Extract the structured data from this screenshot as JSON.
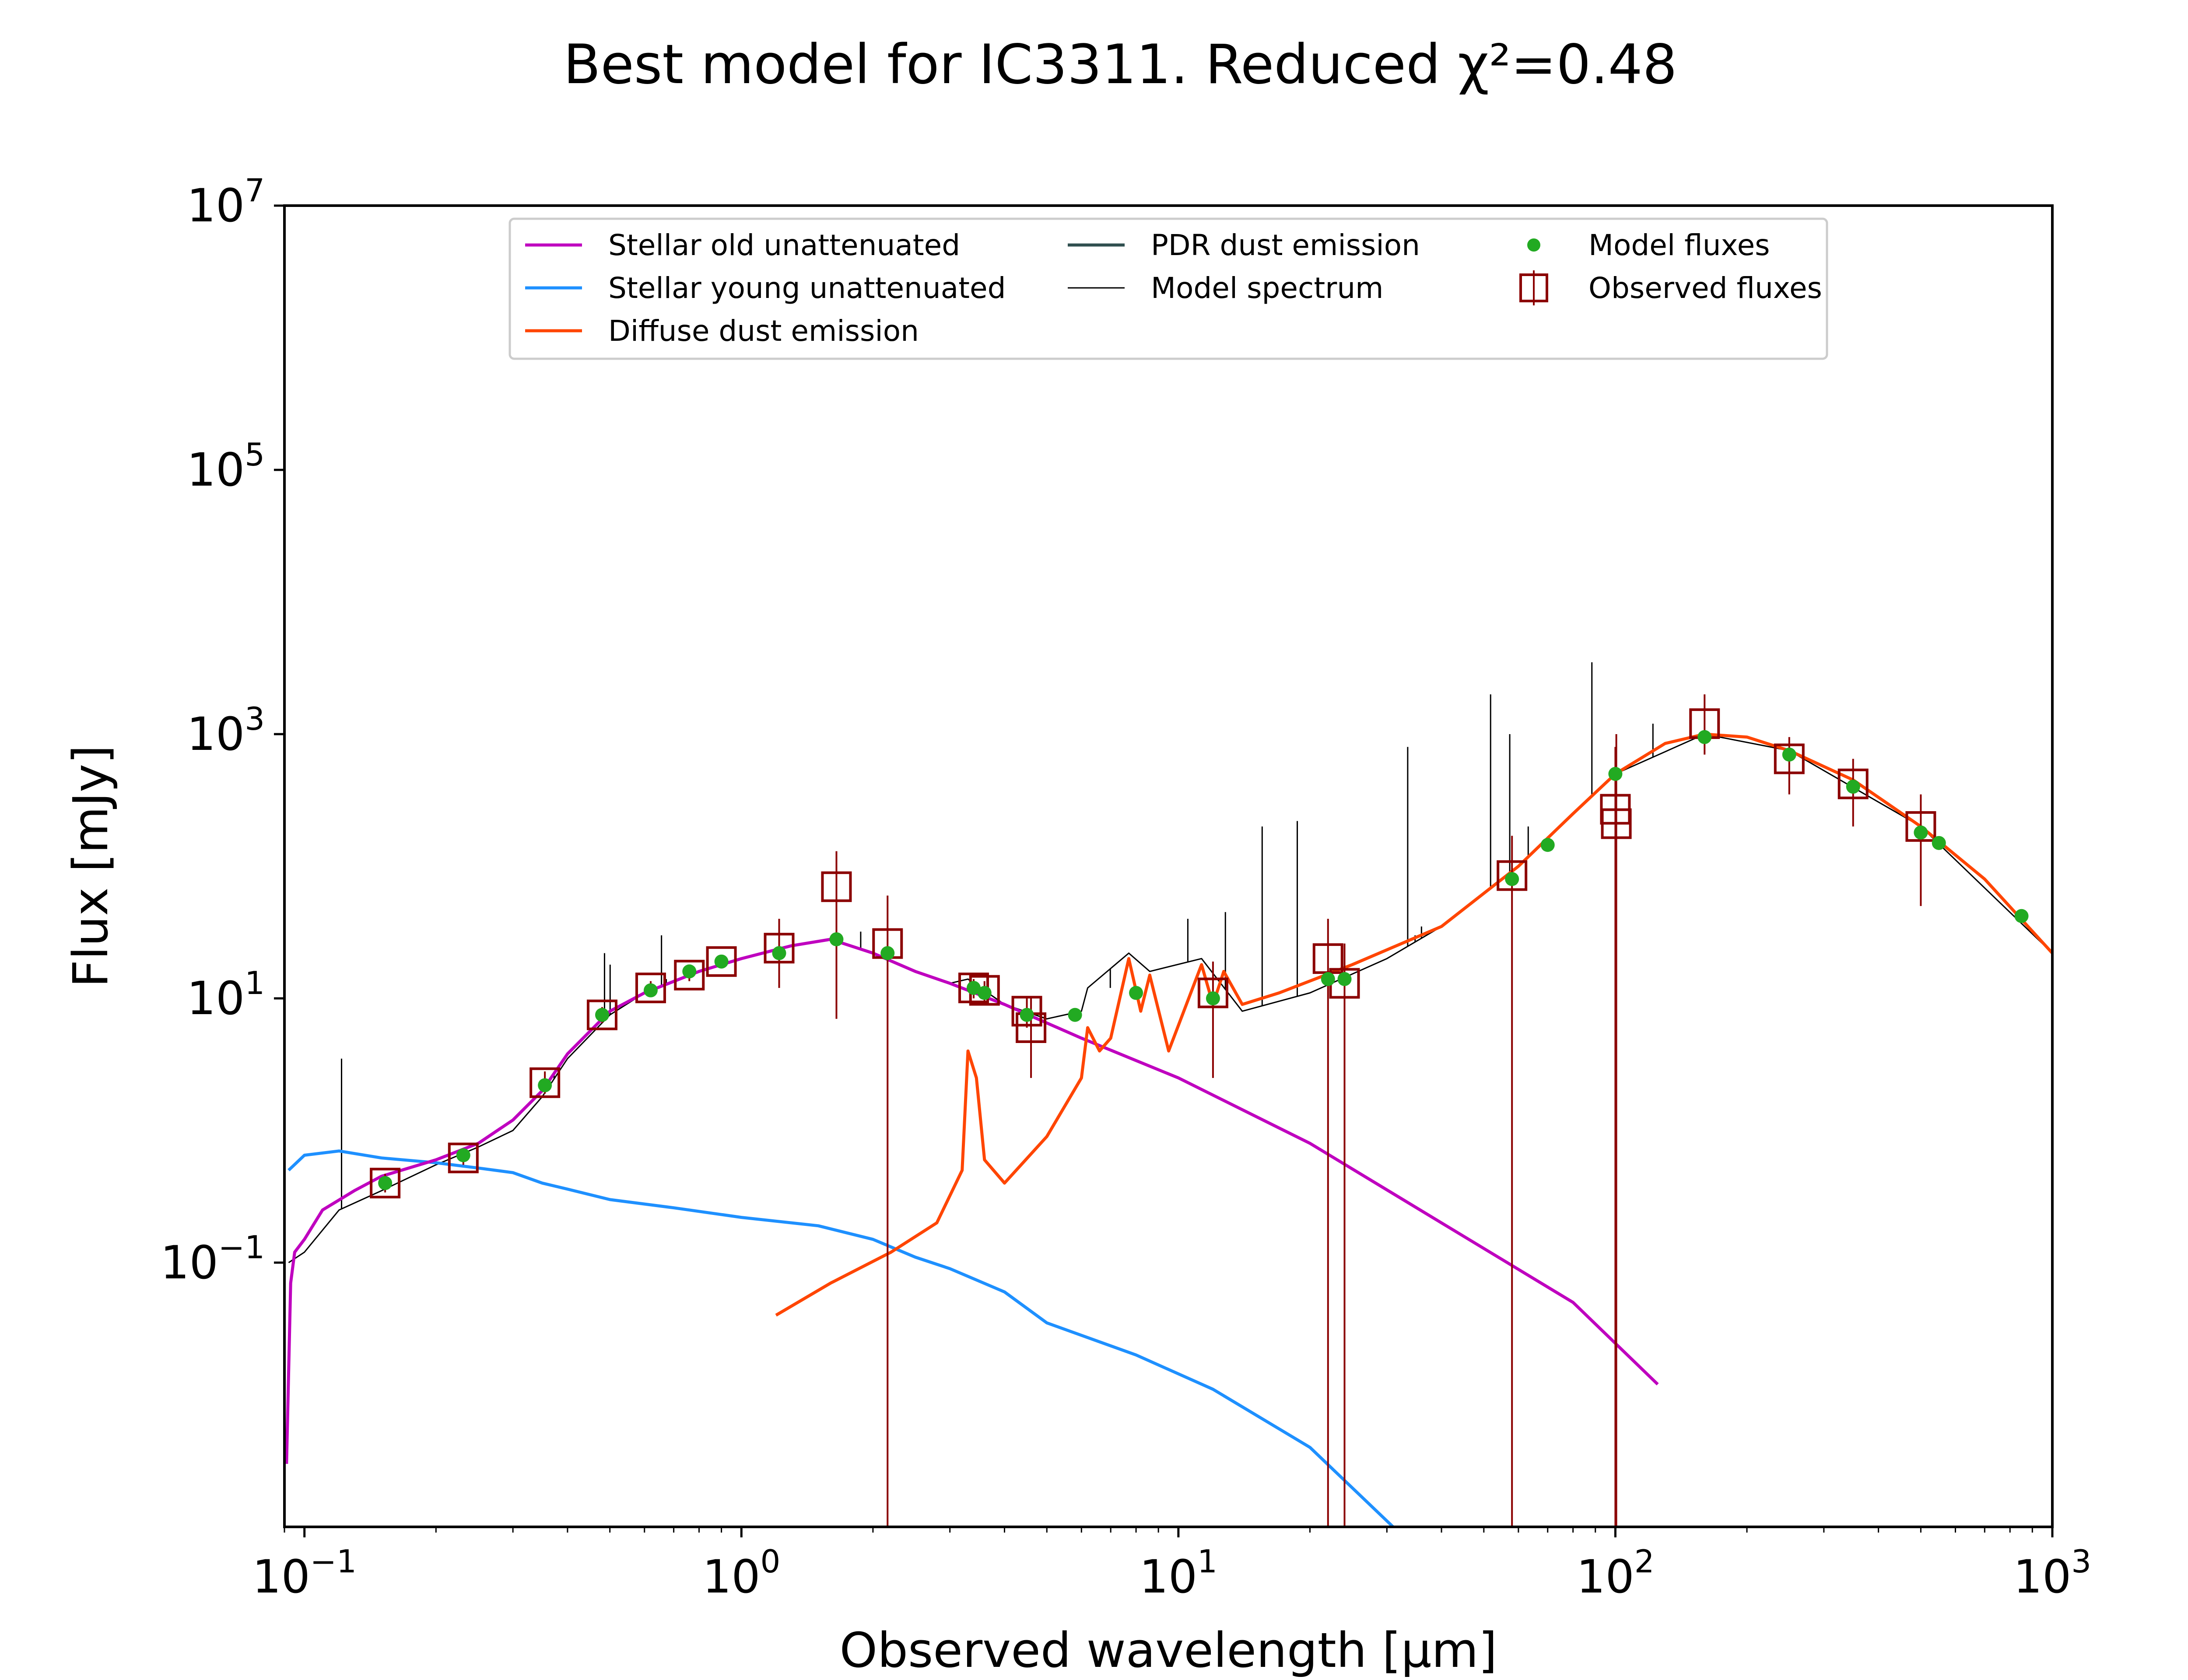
{
  "chart_data": {
    "type": "line",
    "title": "Best model for IC3311. Reduced χ²=0.48",
    "xlabel": "Observed wavelength [μm]",
    "ylabel": "Flux [mJy]",
    "xscale": "log",
    "yscale": "log",
    "xlim": [
      0.09,
      1000
    ],
    "ylim": [
      0.001,
      10000000
    ],
    "grid": false,
    "legend_position": "top-center",
    "x_ticks": [
      {
        "value": 0.1,
        "base": "10",
        "exp": "−1"
      },
      {
        "value": 1,
        "base": "10",
        "exp": "0"
      },
      {
        "value": 10,
        "base": "10",
        "exp": "1"
      },
      {
        "value": 100,
        "base": "10",
        "exp": "2"
      },
      {
        "value": 1000,
        "base": "10",
        "exp": "3"
      }
    ],
    "y_ticks": [
      {
        "value": 0.1,
        "base": "10",
        "exp": "−1"
      },
      {
        "value": 10,
        "base": "10",
        "exp": "1"
      },
      {
        "value": 1000,
        "base": "10",
        "exp": "3"
      },
      {
        "value": 100000,
        "base": "10",
        "exp": "5"
      },
      {
        "value": 10000000,
        "base": "10",
        "exp": "7"
      }
    ],
    "series": [
      {
        "name": "Stellar old unattenuated",
        "kind": "line",
        "color": "#bf00bf",
        "points": [
          [
            0.091,
            0.003
          ],
          [
            0.093,
            0.07
          ],
          [
            0.095,
            0.12
          ],
          [
            0.1,
            0.15
          ],
          [
            0.11,
            0.25
          ],
          [
            0.13,
            0.35
          ],
          [
            0.15,
            0.45
          ],
          [
            0.2,
            0.6
          ],
          [
            0.25,
            0.8
          ],
          [
            0.3,
            1.2
          ],
          [
            0.35,
            2.0
          ],
          [
            0.4,
            3.8
          ],
          [
            0.5,
            8
          ],
          [
            0.6,
            11
          ],
          [
            0.8,
            16
          ],
          [
            1.0,
            20
          ],
          [
            1.3,
            25
          ],
          [
            1.6,
            28
          ],
          [
            2.0,
            22
          ],
          [
            2.5,
            16
          ],
          [
            3.0,
            13
          ],
          [
            4.0,
            9
          ],
          [
            6.0,
            5
          ],
          [
            10.0,
            2.5
          ],
          [
            20.0,
            0.8
          ],
          [
            40.0,
            0.2
          ],
          [
            80.0,
            0.05
          ],
          [
            125.0,
            0.012
          ]
        ]
      },
      {
        "name": "Stellar young unattenuated",
        "kind": "line",
        "color": "#1e90ff",
        "points": [
          [
            0.092,
            0.5
          ],
          [
            0.1,
            0.65
          ],
          [
            0.12,
            0.7
          ],
          [
            0.15,
            0.62
          ],
          [
            0.2,
            0.57
          ],
          [
            0.25,
            0.52
          ],
          [
            0.3,
            0.48
          ],
          [
            0.35,
            0.4
          ],
          [
            0.4,
            0.36
          ],
          [
            0.5,
            0.3
          ],
          [
            0.7,
            0.26
          ],
          [
            1.0,
            0.22
          ],
          [
            1.5,
            0.19
          ],
          [
            2.0,
            0.15
          ],
          [
            2.5,
            0.11
          ],
          [
            3.0,
            0.09
          ],
          [
            4.0,
            0.06
          ],
          [
            5.0,
            0.035
          ],
          [
            8.0,
            0.02
          ],
          [
            12.0,
            0.011
          ],
          [
            20.0,
            0.004
          ],
          [
            31.0,
            0.001
          ]
        ]
      },
      {
        "name": "Diffuse dust emission",
        "kind": "line",
        "color": "#ff4500",
        "points": [
          [
            1.2,
            0.04
          ],
          [
            1.6,
            0.07
          ],
          [
            2.2,
            0.12
          ],
          [
            2.8,
            0.2
          ],
          [
            3.2,
            0.5
          ],
          [
            3.3,
            4
          ],
          [
            3.45,
            2.5
          ],
          [
            3.6,
            0.6
          ],
          [
            4.0,
            0.4
          ],
          [
            5.0,
            0.9
          ],
          [
            6.0,
            2.5
          ],
          [
            6.2,
            6
          ],
          [
            6.6,
            4
          ],
          [
            7.0,
            5
          ],
          [
            7.7,
            20
          ],
          [
            8.2,
            8
          ],
          [
            8.6,
            15
          ],
          [
            9.5,
            4
          ],
          [
            11.3,
            18
          ],
          [
            12.0,
            9
          ],
          [
            12.7,
            16
          ],
          [
            14.0,
            9
          ],
          [
            17.0,
            11
          ],
          [
            25.0,
            18
          ],
          [
            40.0,
            35
          ],
          [
            60.0,
            100
          ],
          [
            80.0,
            250
          ],
          [
            100.0,
            500
          ],
          [
            130.0,
            850
          ],
          [
            160.0,
            1000
          ],
          [
            200.0,
            950
          ],
          [
            250.0,
            750
          ],
          [
            350.0,
            450
          ],
          [
            500.0,
            200
          ],
          [
            700.0,
            80
          ],
          [
            1000.0,
            22
          ]
        ]
      },
      {
        "name": "PDR dust emission",
        "kind": "line",
        "color": "#2f4f4f",
        "points": []
      },
      {
        "name": "Model spectrum",
        "kind": "line",
        "color": "#000000",
        "points": [
          [
            0.092,
            0.1
          ],
          [
            0.1,
            0.12
          ],
          [
            0.12,
            0.25
          ],
          [
            0.15,
            0.35
          ],
          [
            0.2,
            0.55
          ],
          [
            0.25,
            0.75
          ],
          [
            0.3,
            1.0
          ],
          [
            0.35,
            1.8
          ],
          [
            0.4,
            3.5
          ],
          [
            0.5,
            7.5
          ],
          [
            0.6,
            11
          ],
          [
            0.8,
            16
          ],
          [
            1.0,
            20
          ],
          [
            1.3,
            25
          ],
          [
            1.6,
            28
          ],
          [
            2.0,
            22
          ],
          [
            2.5,
            16
          ],
          [
            3.0,
            13
          ],
          [
            3.3,
            14
          ],
          [
            4.0,
            9
          ],
          [
            5.0,
            7
          ],
          [
            6.0,
            8
          ],
          [
            6.2,
            12
          ],
          [
            7.7,
            22
          ],
          [
            8.6,
            16
          ],
          [
            11.3,
            20
          ],
          [
            14.0,
            8
          ],
          [
            20.0,
            11
          ],
          [
            30.0,
            20
          ],
          [
            40.0,
            35
          ],
          [
            60.0,
            100
          ],
          [
            100.0,
            500
          ],
          [
            160.0,
            1000
          ],
          [
            250.0,
            750
          ],
          [
            500.0,
            200
          ],
          [
            1000.0,
            22
          ]
        ]
      },
      {
        "name": "Model fluxes",
        "kind": "scatter",
        "color": "#22aa22",
        "points": [
          [
            0.153,
            0.4
          ],
          [
            0.231,
            0.65
          ],
          [
            0.355,
            2.2
          ],
          [
            0.48,
            7.5
          ],
          [
            0.62,
            11.5
          ],
          [
            0.76,
            16
          ],
          [
            0.9,
            19
          ],
          [
            1.22,
            22
          ],
          [
            1.65,
            28
          ],
          [
            2.16,
            22
          ],
          [
            3.4,
            12
          ],
          [
            3.6,
            11
          ],
          [
            4.5,
            7.5
          ],
          [
            5.8,
            7.5
          ],
          [
            8.0,
            11
          ],
          [
            12.0,
            10
          ],
          [
            22.0,
            14
          ],
          [
            24.0,
            14
          ],
          [
            58.0,
            80
          ],
          [
            70.0,
            145
          ],
          [
            100.0,
            500
          ],
          [
            160.0,
            950
          ],
          [
            250.0,
            700
          ],
          [
            350.0,
            400
          ],
          [
            500.0,
            180
          ],
          [
            550.0,
            150
          ],
          [
            850.0,
            42
          ]
        ]
      },
      {
        "name": "Observed fluxes",
        "kind": "errorbar",
        "color": "#8b0000",
        "points": [
          {
            "x": 0.153,
            "y": 0.4,
            "ylo": 0.34,
            "yhi": 0.47
          },
          {
            "x": 0.231,
            "y": 0.62,
            "ylo": 0.55,
            "yhi": 0.7
          },
          {
            "x": 0.355,
            "y": 2.3,
            "ylo": 1.9,
            "yhi": 2.8
          },
          {
            "x": 0.48,
            "y": 7.5,
            "ylo": 6.5,
            "yhi": 8.6
          },
          {
            "x": 0.62,
            "y": 12,
            "ylo": 10.5,
            "yhi": 13.5
          },
          {
            "x": 0.76,
            "y": 15,
            "ylo": 13.5,
            "yhi": 17
          },
          {
            "x": 0.9,
            "y": 19,
            "ylo": 17,
            "yhi": 21
          },
          {
            "x": 1.22,
            "y": 24,
            "ylo": 12,
            "yhi": 40
          },
          {
            "x": 1.65,
            "y": 70,
            "ylo": 7,
            "yhi": 130
          },
          {
            "x": 2.16,
            "y": 26,
            "ylo": 0.001,
            "yhi": 60
          },
          {
            "x": 3.4,
            "y": 12,
            "ylo": 10,
            "yhi": 14
          },
          {
            "x": 3.6,
            "y": 11.5,
            "ylo": 9.5,
            "yhi": 13.5
          },
          {
            "x": 4.5,
            "y": 8,
            "ylo": 6,
            "yhi": 10
          },
          {
            "x": 4.6,
            "y": 6,
            "ylo": 2.5,
            "yhi": 10
          },
          {
            "x": 12.0,
            "y": 11,
            "ylo": 2.5,
            "yhi": 19
          },
          {
            "x": 22.0,
            "y": 20,
            "ylo": 0.001,
            "yhi": 40
          },
          {
            "x": 24.0,
            "y": 13,
            "ylo": 0.001,
            "yhi": 26
          },
          {
            "x": 58.0,
            "y": 85,
            "ylo": 0.001,
            "yhi": 170
          },
          {
            "x": 100.0,
            "y": 270,
            "ylo": 0.001,
            "yhi": 800
          },
          {
            "x": 100.5,
            "y": 210,
            "ylo": 0.001,
            "yhi": 1000
          },
          {
            "x": 160.0,
            "y": 1200,
            "ylo": 700,
            "yhi": 2000
          },
          {
            "x": 250.0,
            "y": 650,
            "ylo": 350,
            "yhi": 950
          },
          {
            "x": 350.0,
            "y": 420,
            "ylo": 200,
            "yhi": 650
          },
          {
            "x": 500.0,
            "y": 200,
            "ylo": 50,
            "yhi": 350
          }
        ]
      }
    ],
    "emission_lines": [
      {
        "x": 0.1216,
        "top": 3.5
      },
      {
        "x": 0.3727,
        "top": 2.8
      },
      {
        "x": 0.4861,
        "top": 22
      },
      {
        "x": 0.5007,
        "top": 18
      },
      {
        "x": 0.6563,
        "top": 30
      },
      {
        "x": 0.6731,
        "top": 14
      },
      {
        "x": 1.875,
        "top": 32
      },
      {
        "x": 4.05,
        "top": 9
      },
      {
        "x": 6.985,
        "top": 12
      },
      {
        "x": 10.51,
        "top": 40
      },
      {
        "x": 12.81,
        "top": 45
      },
      {
        "x": 15.55,
        "top": 200
      },
      {
        "x": 18.71,
        "top": 220
      },
      {
        "x": 33.48,
        "top": 800
      },
      {
        "x": 34.81,
        "top": 30
      },
      {
        "x": 36.0,
        "top": 35
      },
      {
        "x": 51.81,
        "top": 2000
      },
      {
        "x": 57.32,
        "top": 1000
      },
      {
        "x": 63.18,
        "top": 200
      },
      {
        "x": 88.36,
        "top": 3500
      },
      {
        "x": 121.9,
        "top": 1200
      }
    ]
  }
}
